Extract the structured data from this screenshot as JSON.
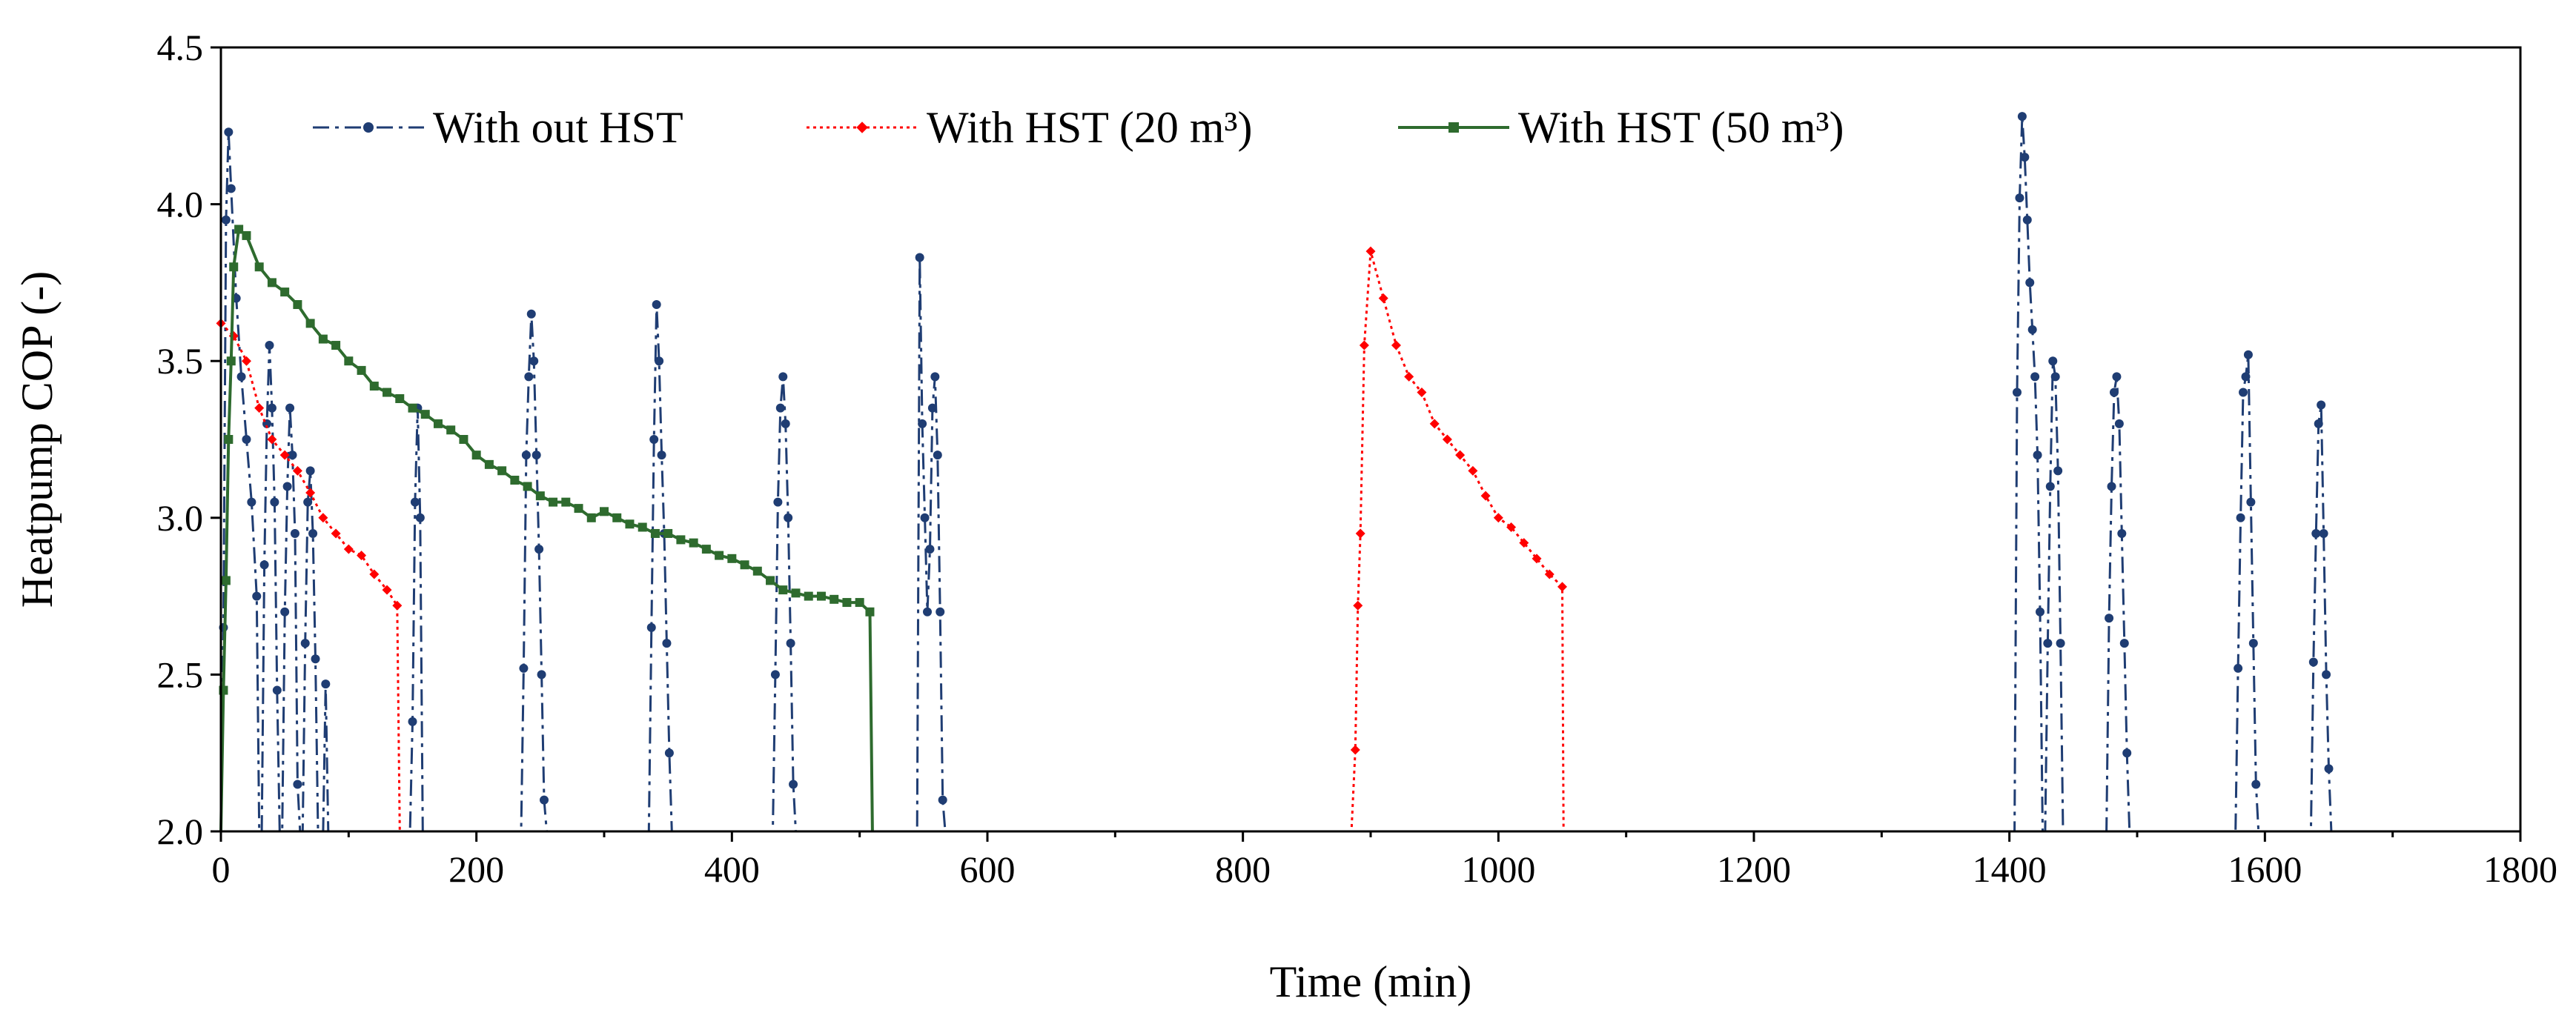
{
  "chart_data": {
    "type": "line",
    "title": "",
    "xlabel": "Time (min)",
    "ylabel": "Heatpump  COP  (-)",
    "xlim": [
      0,
      1800
    ],
    "ylim": [
      2.0,
      4.5
    ],
    "xticks": [
      0,
      200,
      400,
      600,
      800,
      1000,
      1200,
      1400,
      1600,
      1800
    ],
    "xtick_labels": [
      "0",
      "200",
      "400",
      "600",
      "800",
      "1000",
      "1200",
      "1400",
      "1600",
      "1800"
    ],
    "yticks": [
      2.0,
      2.5,
      3.0,
      3.5,
      4.0,
      4.5
    ],
    "ytick_labels": [
      "2.0",
      "2.5",
      "3.0",
      "3.5",
      "4.0",
      "4.5"
    ],
    "grid": false,
    "legend_position": "top",
    "series": [
      {
        "name": "With out HST",
        "color": "#1f3d73",
        "line_style": "dash-dot",
        "marker": "circle",
        "points": [
          [
            0,
            2.0
          ],
          [
            2,
            2.65
          ],
          [
            4,
            3.95
          ],
          [
            6,
            4.23
          ],
          [
            8,
            4.05
          ],
          [
            12,
            3.7
          ],
          [
            16,
            3.45
          ],
          [
            20,
            3.25
          ],
          [
            24,
            3.05
          ],
          [
            28,
            2.75
          ],
          [
            30,
            2.0
          ],
          [
            32,
            2.0
          ],
          [
            34,
            2.85
          ],
          [
            36,
            3.3
          ],
          [
            38,
            3.55
          ],
          [
            40,
            3.35
          ],
          [
            42,
            3.05
          ],
          [
            44,
            2.45
          ],
          [
            46,
            2.0
          ],
          [
            48,
            2.0
          ],
          [
            50,
            2.7
          ],
          [
            52,
            3.1
          ],
          [
            54,
            3.35
          ],
          [
            56,
            3.2
          ],
          [
            58,
            2.95
          ],
          [
            60,
            2.15
          ],
          [
            62,
            2.0
          ],
          [
            64,
            2.0
          ],
          [
            66,
            2.6
          ],
          [
            68,
            3.05
          ],
          [
            70,
            3.15
          ],
          [
            72,
            2.95
          ],
          [
            74,
            2.55
          ],
          [
            76,
            2.0
          ],
          [
            80,
            2.0
          ],
          [
            82,
            2.47
          ],
          [
            84,
            2.0
          ],
          [
            148,
            2.0
          ],
          [
            150,
            2.35
          ],
          [
            152,
            3.05
          ],
          [
            154,
            3.35
          ],
          [
            156,
            3.0
          ],
          [
            158,
            2.0
          ],
          [
            235,
            2.0
          ],
          [
            237,
            2.52
          ],
          [
            239,
            3.2
          ],
          [
            241,
            3.45
          ],
          [
            243,
            3.65
          ],
          [
            245,
            3.5
          ],
          [
            247,
            3.2
          ],
          [
            249,
            2.9
          ],
          [
            251,
            2.5
          ],
          [
            253,
            2.1
          ],
          [
            255,
            2.0
          ],
          [
            335,
            2.0
          ],
          [
            337,
            2.65
          ],
          [
            339,
            3.25
          ],
          [
            341,
            3.68
          ],
          [
            343,
            3.5
          ],
          [
            345,
            3.2
          ],
          [
            347,
            2.95
          ],
          [
            349,
            2.6
          ],
          [
            351,
            2.25
          ],
          [
            353,
            2.0
          ],
          [
            432,
            2.0
          ],
          [
            434,
            2.5
          ],
          [
            436,
            3.05
          ],
          [
            438,
            3.35
          ],
          [
            440,
            3.45
          ],
          [
            442,
            3.3
          ],
          [
            444,
            3.0
          ],
          [
            446,
            2.6
          ],
          [
            448,
            2.15
          ],
          [
            450,
            2.0
          ],
          [
            545,
            2.0
          ],
          [
            547,
            3.83
          ],
          [
            549,
            3.3
          ],
          [
            551,
            3.0
          ],
          [
            553,
            2.7
          ],
          [
            555,
            2.9
          ],
          [
            557,
            3.35
          ],
          [
            559,
            3.45
          ],
          [
            561,
            3.2
          ],
          [
            563,
            2.7
          ],
          [
            565,
            2.1
          ],
          [
            567,
            2.0
          ],
          [
            1404,
            2.0
          ],
          [
            1406,
            3.4
          ],
          [
            1408,
            4.02
          ],
          [
            1410,
            4.28
          ],
          [
            1412,
            4.15
          ],
          [
            1414,
            3.95
          ],
          [
            1416,
            3.75
          ],
          [
            1418,
            3.6
          ],
          [
            1420,
            3.45
          ],
          [
            1422,
            3.2
          ],
          [
            1424,
            2.7
          ],
          [
            1426,
            2.0
          ],
          [
            1428,
            2.0
          ],
          [
            1430,
            2.6
          ],
          [
            1432,
            3.1
          ],
          [
            1434,
            3.5
          ],
          [
            1436,
            3.45
          ],
          [
            1438,
            3.15
          ],
          [
            1440,
            2.6
          ],
          [
            1442,
            2.0
          ],
          [
            1476,
            2.0
          ],
          [
            1478,
            2.68
          ],
          [
            1480,
            3.1
          ],
          [
            1482,
            3.4
          ],
          [
            1484,
            3.45
          ],
          [
            1486,
            3.3
          ],
          [
            1488,
            2.95
          ],
          [
            1490,
            2.6
          ],
          [
            1492,
            2.25
          ],
          [
            1494,
            2.0
          ],
          [
            1577,
            2.0
          ],
          [
            1579,
            2.52
          ],
          [
            1581,
            3.0
          ],
          [
            1583,
            3.4
          ],
          [
            1585,
            3.45
          ],
          [
            1587,
            3.52
          ],
          [
            1589,
            3.05
          ],
          [
            1591,
            2.6
          ],
          [
            1593,
            2.15
          ],
          [
            1595,
            2.0
          ],
          [
            1636,
            2.0
          ],
          [
            1638,
            2.54
          ],
          [
            1640,
            2.95
          ],
          [
            1642,
            3.3
          ],
          [
            1644,
            3.36
          ],
          [
            1646,
            2.95
          ],
          [
            1648,
            2.5
          ],
          [
            1650,
            2.2
          ],
          [
            1652,
            2.0
          ]
        ]
      },
      {
        "name": "With HST (20 m³)",
        "color": "#ff0000",
        "line_style": "dotted",
        "marker": "diamond",
        "points": [
          [
            0,
            3.62
          ],
          [
            10,
            3.58
          ],
          [
            20,
            3.5
          ],
          [
            30,
            3.35
          ],
          [
            40,
            3.25
          ],
          [
            50,
            3.2
          ],
          [
            60,
            3.15
          ],
          [
            70,
            3.08
          ],
          [
            80,
            3.0
          ],
          [
            90,
            2.95
          ],
          [
            100,
            2.9
          ],
          [
            110,
            2.88
          ],
          [
            120,
            2.82
          ],
          [
            130,
            2.77
          ],
          [
            138,
            2.72
          ],
          [
            140,
            2.0
          ],
          [
            885,
            2.0
          ],
          [
            888,
            2.26
          ],
          [
            890,
            2.72
          ],
          [
            892,
            2.95
          ],
          [
            895,
            3.55
          ],
          [
            900,
            3.85
          ],
          [
            910,
            3.7
          ],
          [
            920,
            3.55
          ],
          [
            930,
            3.45
          ],
          [
            940,
            3.4
          ],
          [
            950,
            3.3
          ],
          [
            960,
            3.25
          ],
          [
            970,
            3.2
          ],
          [
            980,
            3.15
          ],
          [
            990,
            3.07
          ],
          [
            1000,
            3.0
          ],
          [
            1010,
            2.97
          ],
          [
            1020,
            2.92
          ],
          [
            1030,
            2.87
          ],
          [
            1040,
            2.82
          ],
          [
            1050,
            2.78
          ],
          [
            1051,
            2.0
          ]
        ]
      },
      {
        "name": "With HST (50 m³)",
        "color": "#2e6b2e",
        "line_style": "solid",
        "marker": "square",
        "points": [
          [
            0,
            2.0
          ],
          [
            2,
            2.45
          ],
          [
            4,
            2.8
          ],
          [
            6,
            3.25
          ],
          [
            8,
            3.5
          ],
          [
            10,
            3.8
          ],
          [
            14,
            3.92
          ],
          [
            20,
            3.9
          ],
          [
            30,
            3.8
          ],
          [
            40,
            3.75
          ],
          [
            50,
            3.72
          ],
          [
            60,
            3.68
          ],
          [
            70,
            3.62
          ],
          [
            80,
            3.57
          ],
          [
            90,
            3.55
          ],
          [
            100,
            3.5
          ],
          [
            110,
            3.47
          ],
          [
            120,
            3.42
          ],
          [
            130,
            3.4
          ],
          [
            140,
            3.38
          ],
          [
            150,
            3.35
          ],
          [
            160,
            3.33
          ],
          [
            170,
            3.3
          ],
          [
            180,
            3.28
          ],
          [
            190,
            3.25
          ],
          [
            200,
            3.2
          ],
          [
            210,
            3.17
          ],
          [
            220,
            3.15
          ],
          [
            230,
            3.12
          ],
          [
            240,
            3.1
          ],
          [
            250,
            3.07
          ],
          [
            260,
            3.05
          ],
          [
            270,
            3.05
          ],
          [
            280,
            3.03
          ],
          [
            290,
            3.0
          ],
          [
            300,
            3.02
          ],
          [
            310,
            3.0
          ],
          [
            320,
            2.98
          ],
          [
            330,
            2.97
          ],
          [
            340,
            2.95
          ],
          [
            350,
            2.95
          ],
          [
            360,
            2.93
          ],
          [
            370,
            2.92
          ],
          [
            380,
            2.9
          ],
          [
            390,
            2.88
          ],
          [
            400,
            2.87
          ],
          [
            410,
            2.85
          ],
          [
            420,
            2.83
          ],
          [
            430,
            2.8
          ],
          [
            440,
            2.77
          ],
          [
            450,
            2.76
          ],
          [
            460,
            2.75
          ],
          [
            470,
            2.75
          ],
          [
            480,
            2.74
          ],
          [
            490,
            2.73
          ],
          [
            500,
            2.73
          ],
          [
            508,
            2.7
          ],
          [
            510,
            2.0
          ]
        ]
      }
    ]
  }
}
